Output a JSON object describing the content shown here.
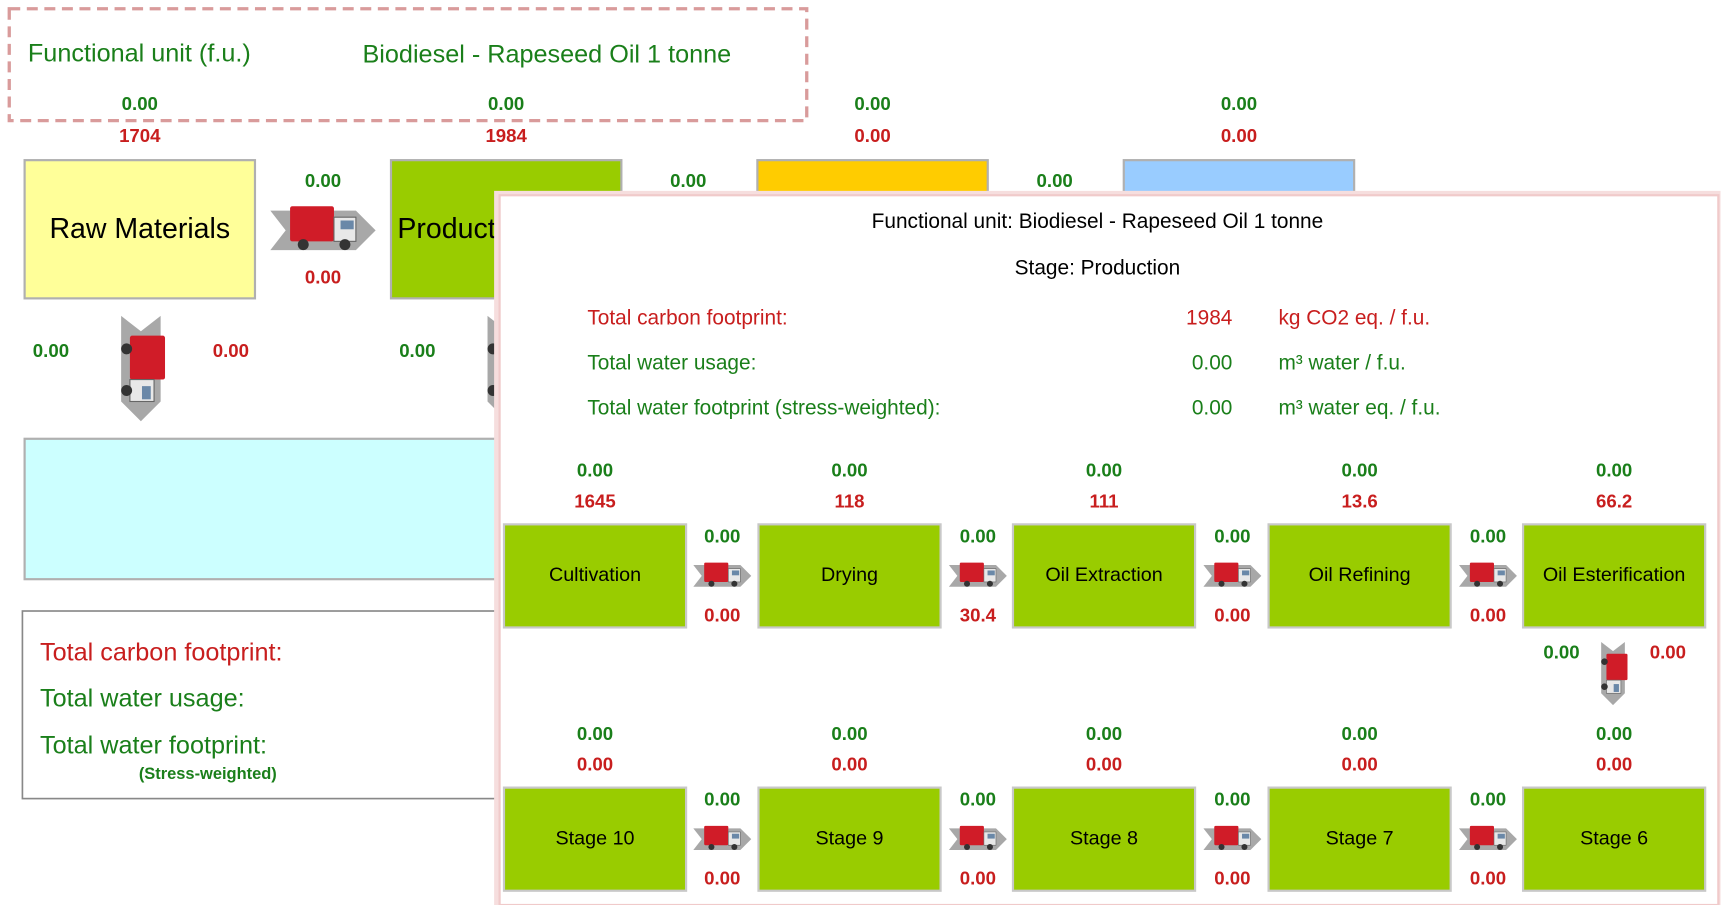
{
  "background": {
    "header": {
      "label": "Functional unit (f.u.)",
      "value": "Biodiesel - Rapeseed Oil 1 tonne"
    },
    "stages": [
      {
        "label": "Raw Materials",
        "water": "0.00",
        "carbon": "1704"
      },
      {
        "label": "Production",
        "water": "0.00",
        "carbon": "1984"
      },
      {
        "water": "0.00",
        "carbon": "0.00"
      },
      {
        "water": "0.00",
        "carbon": "0.00"
      }
    ],
    "transports": [
      {
        "water": "0.00",
        "carbon": "0.00"
      },
      {
        "water": "0.00"
      },
      {
        "water": "0.00"
      }
    ],
    "vertical_transports": [
      {
        "left": "0.00",
        "right": "0.00"
      },
      {
        "left": "0.00"
      }
    ],
    "totals": {
      "carbon": "Total carbon footprint:",
      "water_usage": "Total water usage:",
      "water_footprint": "Total water footprint:",
      "water_footprint_note": "(Stress-weighted)"
    }
  },
  "detail": {
    "title": "Functional unit: Biodiesel - Rapeseed Oil 1 tonne",
    "stage": "Stage: Production",
    "metrics": [
      {
        "label": "Total carbon footprint:",
        "value": "1984",
        "unit": "kg CO2 eq. / f.u."
      },
      {
        "label": "Total water usage:",
        "value": "0.00",
        "unit": "m³ water / f.u."
      },
      {
        "label": "Total water footprint (stress-weighted):",
        "value": "0.00",
        "unit": "m³ water eq. / f.u."
      }
    ],
    "row1": {
      "stages": [
        {
          "label": "Cultivation",
          "water": "0.00",
          "carbon": "1645"
        },
        {
          "label": "Drying",
          "water": "0.00",
          "carbon": "118"
        },
        {
          "label": "Oil Extraction",
          "water": "0.00",
          "carbon": "111"
        },
        {
          "label": "Oil Refining",
          "water": "0.00",
          "carbon": "13.6"
        },
        {
          "label": "Oil Esterification",
          "water": "0.00",
          "carbon": "66.2"
        }
      ],
      "transports": [
        {
          "water": "0.00",
          "carbon": "0.00"
        },
        {
          "water": "0.00",
          "carbon": "30.4"
        },
        {
          "water": "0.00",
          "carbon": "0.00"
        },
        {
          "water": "0.00",
          "carbon": "0.00"
        }
      ]
    },
    "vertical_transport": {
      "left": "0.00",
      "right": "0.00"
    },
    "row2": {
      "stages": [
        {
          "label": "Stage 10",
          "water": "0.00",
          "carbon": "0.00"
        },
        {
          "label": "Stage 9",
          "water": "0.00",
          "carbon": "0.00"
        },
        {
          "label": "Stage 8",
          "water": "0.00",
          "carbon": "0.00"
        },
        {
          "label": "Stage 7",
          "water": "0.00",
          "carbon": "0.00"
        },
        {
          "label": "Stage 6",
          "water": "0.00",
          "carbon": "0.00"
        }
      ],
      "transports": [
        {
          "water": "0.00",
          "carbon": "0.00"
        },
        {
          "water": "0.00",
          "carbon": "0.00"
        },
        {
          "water": "0.00",
          "carbon": "0.00"
        },
        {
          "water": "0.00",
          "carbon": "0.00"
        }
      ]
    }
  }
}
